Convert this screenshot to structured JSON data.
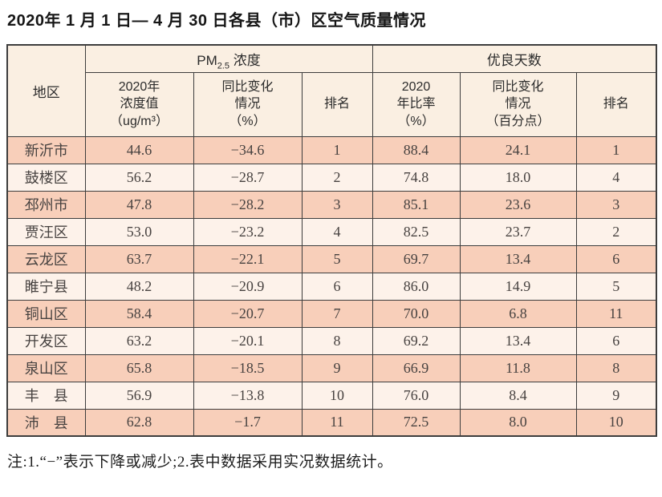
{
  "page": {
    "title": "2020年 1 月 1 日— 4 月 30 日各县（市）区空气质量情况",
    "note": "注:1.“−”表示下降或减少;2.表中数据采用实况数据统计。"
  },
  "table": {
    "corner_header": "地区",
    "group_pm": {
      "prefix": "PM",
      "sub": "2.5",
      "suffix": " 浓度"
    },
    "group_days": "优良天数",
    "subheaders": {
      "pm_value": "2020年\n浓度值\n（ug/m³）",
      "pm_change": "同比变化\n情况\n（%）",
      "pm_rank": "排名",
      "days_rate": "2020\n年比率\n（%）",
      "days_change": "同比变化\n情况\n（百分点）",
      "days_rank": "排名"
    },
    "rows": [
      {
        "region": "新沂市",
        "pm_value": "44.6",
        "pm_change": "−34.6",
        "pm_rank": "1",
        "days_rate": "88.4",
        "days_change": "24.1",
        "days_rank": "1"
      },
      {
        "region": "鼓楼区",
        "pm_value": "56.2",
        "pm_change": "−28.7",
        "pm_rank": "2",
        "days_rate": "74.8",
        "days_change": "18.0",
        "days_rank": "4"
      },
      {
        "region": "邳州市",
        "pm_value": "47.8",
        "pm_change": "−28.2",
        "pm_rank": "3",
        "days_rate": "85.1",
        "days_change": "23.6",
        "days_rank": "3"
      },
      {
        "region": "贾汪区",
        "pm_value": "53.0",
        "pm_change": "−23.2",
        "pm_rank": "4",
        "days_rate": "82.5",
        "days_change": "23.7",
        "days_rank": "2"
      },
      {
        "region": "云龙区",
        "pm_value": "63.7",
        "pm_change": "−22.1",
        "pm_rank": "5",
        "days_rate": "69.7",
        "days_change": "13.4",
        "days_rank": "6"
      },
      {
        "region": "睢宁县",
        "pm_value": "48.2",
        "pm_change": "−20.9",
        "pm_rank": "6",
        "days_rate": "86.0",
        "days_change": "14.9",
        "days_rank": "5"
      },
      {
        "region": "铜山区",
        "pm_value": "58.4",
        "pm_change": "−20.7",
        "pm_rank": "7",
        "days_rate": "70.0",
        "days_change": "6.8",
        "days_rank": "11"
      },
      {
        "region": "开发区",
        "pm_value": "63.2",
        "pm_change": "−20.1",
        "pm_rank": "8",
        "days_rate": "69.2",
        "days_change": "13.4",
        "days_rank": "6"
      },
      {
        "region": "泉山区",
        "pm_value": "65.8",
        "pm_change": "−18.5",
        "pm_rank": "9",
        "days_rate": "66.9",
        "days_change": "11.8",
        "days_rank": "8"
      },
      {
        "region": "丰　县",
        "pm_value": "56.9",
        "pm_change": "−13.8",
        "pm_rank": "10",
        "days_rate": "76.0",
        "days_change": "8.4",
        "days_rank": "9"
      },
      {
        "region": "沛　县",
        "pm_value": "62.8",
        "pm_change": "−1.7",
        "pm_rank": "11",
        "days_rate": "72.5",
        "days_change": "8.0",
        "days_rank": "10"
      }
    ]
  },
  "colors": {
    "row_odd": "#f8cfba",
    "row_even": "#fdf2ea",
    "header_bg": "#faefe2",
    "border": "#3d3d3d",
    "text": "#474240"
  }
}
